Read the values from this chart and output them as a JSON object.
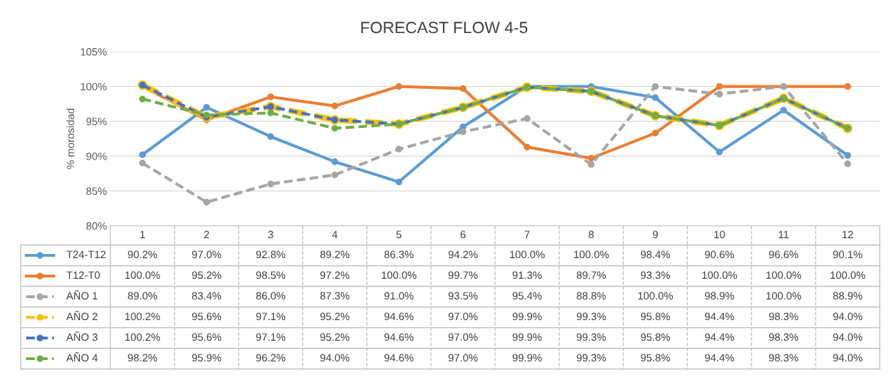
{
  "chart_data": {
    "type": "line",
    "title": "FORECAST FLOW 4-5",
    "ylabel": "% morosidad",
    "categories": [
      "1",
      "2",
      "3",
      "4",
      "5",
      "6",
      "7",
      "8",
      "9",
      "10",
      "11",
      "12"
    ],
    "ylim": [
      80,
      105
    ],
    "yticks": [
      {
        "value": 80,
        "label": "80%"
      },
      {
        "value": 85,
        "label": "85%"
      },
      {
        "value": 90,
        "label": "90%"
      },
      {
        "value": 95,
        "label": "95%"
      },
      {
        "value": 100,
        "label": "100%"
      },
      {
        "value": 105,
        "label": "105%"
      }
    ],
    "grid": "y",
    "legend": "bottom",
    "marker": "circle",
    "series": [
      {
        "name": "T24-T12",
        "color": "#5b9bd5",
        "line_style": "solid",
        "values": [
          90.2,
          97.0,
          92.8,
          89.2,
          86.3,
          94.2,
          100.0,
          100.0,
          98.4,
          90.6,
          96.6,
          90.1
        ],
        "value_labels": [
          "90.2%",
          "97.0%",
          "92.8%",
          "89.2%",
          "86.3%",
          "94.2%",
          "100.0%",
          "100.0%",
          "98.4%",
          "90.6%",
          "96.6%",
          "90.1%"
        ]
      },
      {
        "name": "T12-T0",
        "color": "#ed7d31",
        "line_style": "solid",
        "values": [
          100.0,
          95.2,
          98.5,
          97.2,
          100.0,
          99.7,
          91.3,
          89.7,
          93.3,
          100.0,
          100.0,
          100.0
        ],
        "value_labels": [
          "100.0%",
          "95.2%",
          "98.5%",
          "97.2%",
          "100.0%",
          "99.7%",
          "91.3%",
          "89.7%",
          "93.3%",
          "100.0%",
          "100.0%",
          "100.0%"
        ]
      },
      {
        "name": "AÑO 1",
        "color": "#a5a5a5",
        "line_style": "dashed",
        "values": [
          89.0,
          83.4,
          86.0,
          87.3,
          91.0,
          93.5,
          95.4,
          88.8,
          100.0,
          98.9,
          100.0,
          88.9
        ],
        "value_labels": [
          "89.0%",
          "83.4%",
          "86.0%",
          "87.3%",
          "91.0%",
          "93.5%",
          "95.4%",
          "88.8%",
          "100.0%",
          "98.9%",
          "100.0%",
          "88.9%"
        ]
      },
      {
        "name": "AÑO 2",
        "color": "#ffc000",
        "line_style": "dashed",
        "values": [
          100.2,
          95.6,
          97.1,
          95.2,
          94.6,
          97.0,
          99.9,
          99.3,
          95.8,
          94.4,
          98.3,
          94.0
        ],
        "value_labels": [
          "100.2%",
          "95.6%",
          "97.1%",
          "95.2%",
          "94.6%",
          "97.0%",
          "99.9%",
          "99.3%",
          "95.8%",
          "94.4%",
          "98.3%",
          "94.0%"
        ]
      },
      {
        "name": "AÑO 3",
        "color": "#4472c4",
        "line_style": "dashed",
        "values": [
          100.2,
          95.6,
          97.1,
          95.2,
          94.6,
          97.0,
          99.9,
          99.3,
          95.8,
          94.4,
          98.3,
          94.0
        ],
        "value_labels": [
          "100.2%",
          "95.6%",
          "97.1%",
          "95.2%",
          "94.6%",
          "97.0%",
          "99.9%",
          "99.3%",
          "95.8%",
          "94.4%",
          "98.3%",
          "94.0%"
        ]
      },
      {
        "name": "AÑO 4",
        "color": "#70ad47",
        "line_style": "dashed",
        "values": [
          98.2,
          95.9,
          96.2,
          94.0,
          94.6,
          97.0,
          99.9,
          99.3,
          95.8,
          94.4,
          98.3,
          94.0
        ],
        "value_labels": [
          "98.2%",
          "95.9%",
          "96.2%",
          "94.0%",
          "94.6%",
          "97.0%",
          "99.9%",
          "99.3%",
          "95.8%",
          "94.4%",
          "98.3%",
          "94.0%"
        ]
      }
    ]
  }
}
